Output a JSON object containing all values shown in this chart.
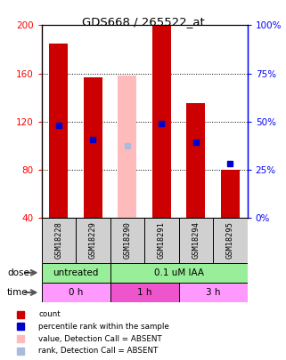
{
  "title": "GDS668 / 265522_at",
  "samples": [
    "GSM18228",
    "GSM18229",
    "GSM18290",
    "GSM18291",
    "GSM18294",
    "GSM18295"
  ],
  "bar_values": [
    185,
    157,
    null,
    200,
    135,
    80
  ],
  "absent_bar_values": [
    null,
    null,
    158,
    null,
    null,
    null
  ],
  "rank_values": [
    117,
    105,
    null,
    118,
    103,
    85
  ],
  "rank_absent_values": [
    null,
    null,
    100,
    null,
    null,
    null
  ],
  "ylim_left": [
    40,
    200
  ],
  "ylim_right": [
    0,
    100
  ],
  "yticks_left": [
    40,
    80,
    120,
    160,
    200
  ],
  "yticks_right": [
    0,
    25,
    50,
    75,
    100
  ],
  "dose_groups": [
    {
      "label": "untreated",
      "start": 0,
      "end": 2,
      "color": "#99EE99"
    },
    {
      "label": "0.1 uM IAA",
      "start": 2,
      "end": 6,
      "color": "#99EE99"
    }
  ],
  "time_groups": [
    {
      "label": "0 h",
      "start": 0,
      "end": 2,
      "color": "#FF99FF"
    },
    {
      "label": "1 h",
      "start": 2,
      "end": 4,
      "color": "#EE55CC"
    },
    {
      "label": "3 h",
      "start": 4,
      "end": 6,
      "color": "#FF99FF"
    }
  ],
  "red_color": "#cc0000",
  "blue_color": "#0000cc",
  "pink_color": "#FFBBBB",
  "lightblue_color": "#AABBDD",
  "gray_color": "#D0D0D0",
  "legend_labels": [
    "count",
    "percentile rank within the sample",
    "value, Detection Call = ABSENT",
    "rank, Detection Call = ABSENT"
  ]
}
